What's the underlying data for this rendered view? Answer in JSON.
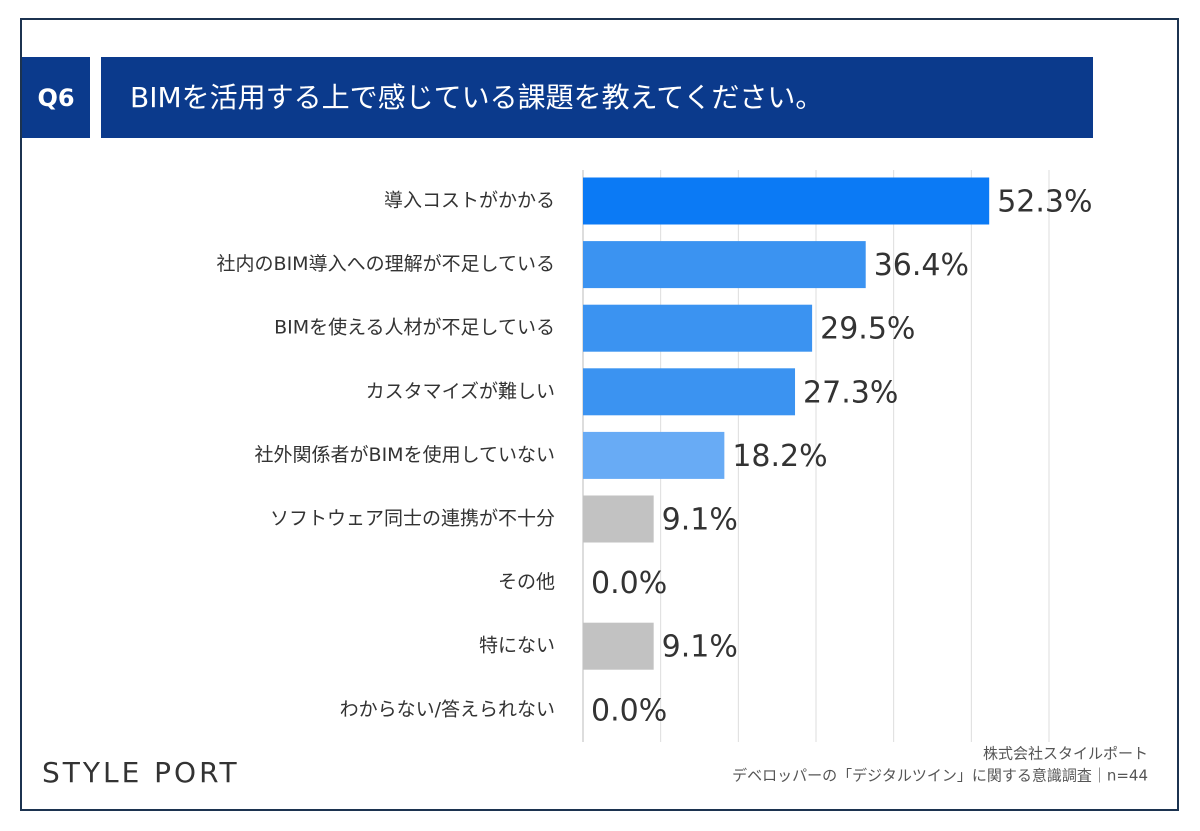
{
  "question": "Q6",
  "brand": "STYLE PORT",
  "source": [
    "株式会社スタイルポート",
    "デベロッパーの「デジタルツイン」に関する意識調査｜n=44"
  ],
  "chart_data": {
    "type": "bar",
    "orientation": "horizontal",
    "title": "BIMを活用する上で感じている課題を教えてください。",
    "categories": [
      "導入コストがかかる",
      "社内のBIM導入への理解が不足している",
      "BIMを使える人材が不足している",
      "カスタマイズが難しい",
      "社外関係者がBIMを使用していない",
      "ソフトウェア同士の連携が不十分",
      "その他",
      "特にない",
      "わからない/答えられない"
    ],
    "values": [
      52.3,
      36.4,
      29.5,
      27.3,
      18.2,
      9.1,
      0.0,
      9.1,
      0.0
    ],
    "value_labels": [
      "52.3%",
      "36.4%",
      "29.5%",
      "27.3%",
      "18.2%",
      "9.1%",
      "0.0%",
      "9.1%",
      "0.0%"
    ],
    "colors": [
      "#0b7af5",
      "#3b93f1",
      "#3b93f1",
      "#3b93f1",
      "#68abf5",
      "#c2c2c2",
      "#c2c2c2",
      "#c2c2c2",
      "#c2c2c2"
    ],
    "xlim": [
      0,
      60
    ],
    "xticks": [
      0,
      10,
      20,
      30,
      40,
      50,
      60
    ],
    "grid": true
  }
}
